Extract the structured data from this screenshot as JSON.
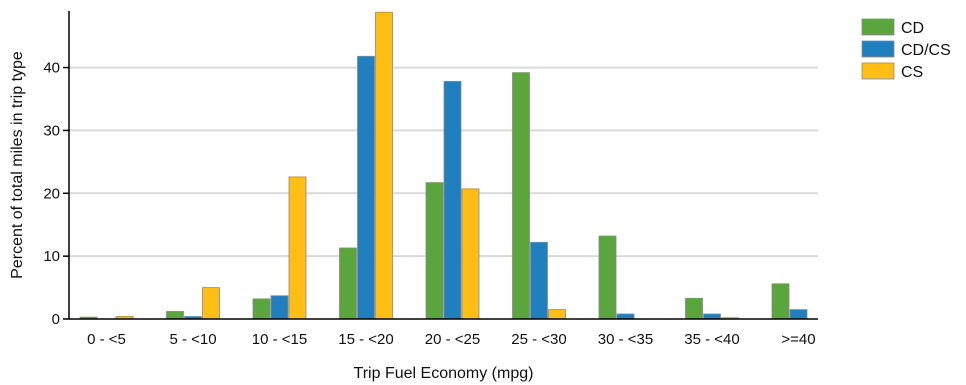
{
  "chart_data": {
    "type": "bar",
    "xlabel": "Trip Fuel Economy (mpg)",
    "ylabel": "Percent of total miles in trip type",
    "ylim": [
      0,
      49
    ],
    "yticks": [
      0,
      10,
      20,
      30,
      40
    ],
    "grid": true,
    "legend_position": "top-right",
    "categories": [
      "0 - <5",
      "5 - <10",
      "10 - <15",
      "15 - <20",
      "20 - <25",
      "25 - <30",
      "30 - <35",
      "35 - <40",
      ">=40"
    ],
    "series": [
      {
        "name": "CD",
        "color": "#5aa63d",
        "values": [
          0.3,
          1.2,
          3.2,
          11.3,
          21.7,
          39.2,
          13.2,
          3.3,
          5.6
        ]
      },
      {
        "name": "CD/CS",
        "color": "#1f7fbf",
        "values": [
          0.0,
          0.4,
          3.7,
          41.8,
          37.8,
          12.2,
          0.8,
          0.8,
          1.5
        ]
      },
      {
        "name": "CS",
        "color": "#ffbe14",
        "values": [
          0.4,
          5.0,
          22.6,
          48.8,
          20.7,
          1.5,
          0.0,
          0.2,
          0.0
        ]
      }
    ]
  }
}
